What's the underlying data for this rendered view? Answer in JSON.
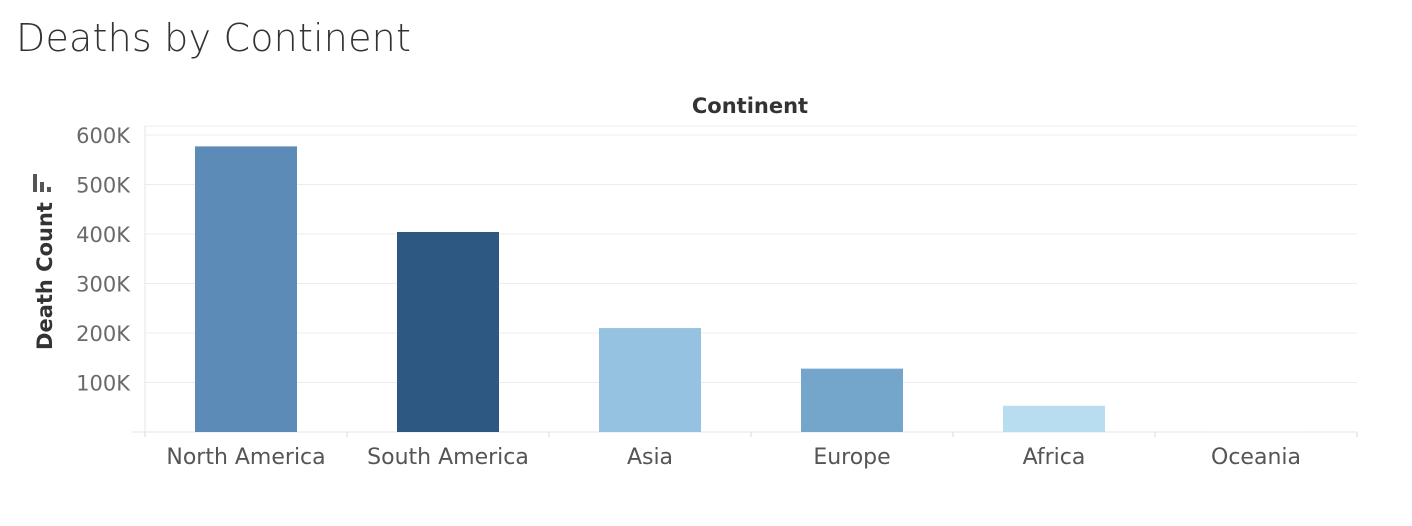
{
  "chart_data": {
    "type": "bar",
    "title": "Deaths by Continent",
    "column_header": "Continent",
    "ylabel": "Death Count",
    "ylim": [
      0,
      600000
    ],
    "yticks": [
      100000,
      200000,
      300000,
      400000,
      500000,
      600000
    ],
    "ytick_labels": [
      "100K",
      "200K",
      "300K",
      "400K",
      "500K",
      "600K"
    ],
    "categories": [
      "North America",
      "South America",
      "Asia",
      "Europe",
      "Africa",
      "Oceania"
    ],
    "values": [
      577000,
      404000,
      210000,
      128000,
      53000,
      1000
    ],
    "colors": [
      "#5b8bb6",
      "#2c5882",
      "#96c2e1",
      "#74a6cc",
      "#b8ddf0",
      "#dcecf7"
    ],
    "grid": true,
    "legend": "none"
  }
}
